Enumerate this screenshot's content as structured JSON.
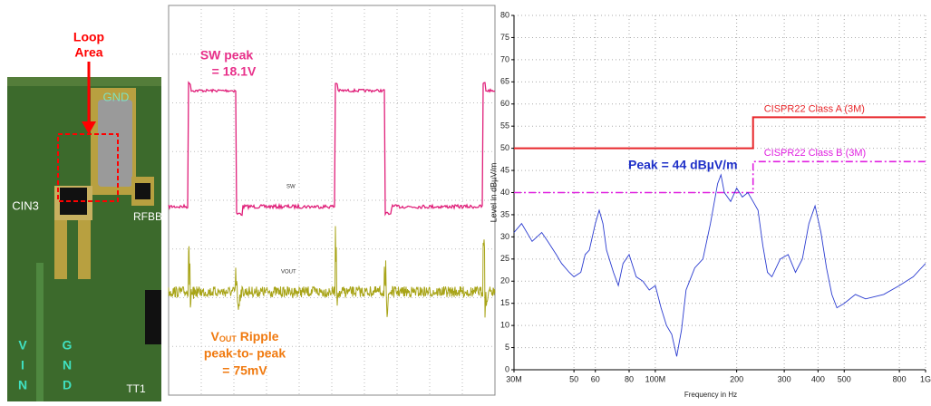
{
  "pcb": {
    "loop_label": [
      "Loop",
      "Area"
    ],
    "gnd_top": "GND",
    "cin3": "CIN3",
    "rfbb": "RFBB",
    "vin": [
      "V",
      "I",
      "N"
    ],
    "gnd_bottom": [
      "G",
      "N",
      "D"
    ],
    "tt1": "TT1"
  },
  "scope": {
    "sw_peak": [
      "SW peak",
      "= 18.1V"
    ],
    "vout": {
      "main": "V",
      "sub": "OUT",
      "rest": " Ripple"
    },
    "ripple_lines": [
      "peak-to- peak",
      "= 75mV"
    ],
    "trace_tags": [
      "SW",
      "VOUT"
    ]
  },
  "chart_data": {
    "type": "line",
    "xscale": "log",
    "grid": true,
    "xlabel": "Frequency in Hz",
    "ylabel": "Level in dBµV/m",
    "annotation": "Peak = 44 dBµV/m",
    "xlim": [
      30000000,
      1000000000
    ],
    "xticks": [
      {
        "value": 30000000,
        "label": "30M"
      },
      {
        "value": 50000000,
        "label": "50"
      },
      {
        "value": 60000000,
        "label": "60"
      },
      {
        "value": 80000000,
        "label": "80"
      },
      {
        "value": 100000000,
        "label": "100M"
      },
      {
        "value": 200000000,
        "label": "200"
      },
      {
        "value": 300000000,
        "label": "300"
      },
      {
        "value": 400000000,
        "label": "400"
      },
      {
        "value": 500000000,
        "label": "500"
      },
      {
        "value": 800000000,
        "label": "800"
      },
      {
        "value": 1000000000,
        "label": "1G"
      }
    ],
    "ylim": [
      0,
      80
    ],
    "yticks": [
      0,
      5,
      10,
      15,
      20,
      25,
      30,
      35,
      40,
      45,
      50,
      55,
      60,
      65,
      70,
      75,
      80
    ],
    "series": [
      {
        "name": "CISPR22 Class A (3M)",
        "color": "#e8262a",
        "style": "solid",
        "x": [
          30000000,
          230000000,
          230000000,
          1000000000
        ],
        "values": [
          50,
          50,
          57,
          57
        ]
      },
      {
        "name": "CISPR22 Class B (3M)",
        "color": "#e020e0",
        "style": "dashdot",
        "x": [
          30000000,
          230000000,
          230000000,
          1000000000
        ],
        "values": [
          40,
          40,
          47,
          47
        ]
      },
      {
        "color": "#2a3bd0",
        "style": "thin",
        "x": [
          30000000,
          32000000,
          35000000,
          38000000,
          40000000,
          43000000,
          45000000,
          48000000,
          50000000,
          53000000,
          55000000,
          57000000,
          60000000,
          62000000,
          64000000,
          66000000,
          70000000,
          73000000,
          76000000,
          80000000,
          85000000,
          90000000,
          95000000,
          100000000,
          105000000,
          110000000,
          115000000,
          120000000,
          125000000,
          130000000,
          140000000,
          150000000,
          160000000,
          170000000,
          175000000,
          180000000,
          190000000,
          200000000,
          210000000,
          220000000,
          230000000,
          240000000,
          250000000,
          260000000,
          270000000,
          290000000,
          310000000,
          330000000,
          350000000,
          370000000,
          390000000,
          410000000,
          430000000,
          450000000,
          470000000,
          500000000,
          550000000,
          600000000,
          700000000,
          800000000,
          900000000,
          1000000000
        ],
        "values": [
          31,
          33,
          29,
          31,
          29,
          26,
          24,
          22,
          21,
          22,
          26,
          27,
          33,
          36,
          33,
          27,
          22,
          19,
          24,
          26,
          21,
          20,
          18,
          19,
          14,
          10,
          8,
          3,
          9,
          18,
          23,
          25,
          33,
          42,
          44,
          40,
          38,
          41,
          39,
          40,
          38,
          36,
          28,
          22,
          21,
          25,
          26,
          22,
          25,
          33,
          37,
          31,
          23,
          17,
          14,
          15,
          17,
          16,
          17,
          19,
          21,
          24
        ]
      }
    ]
  }
}
